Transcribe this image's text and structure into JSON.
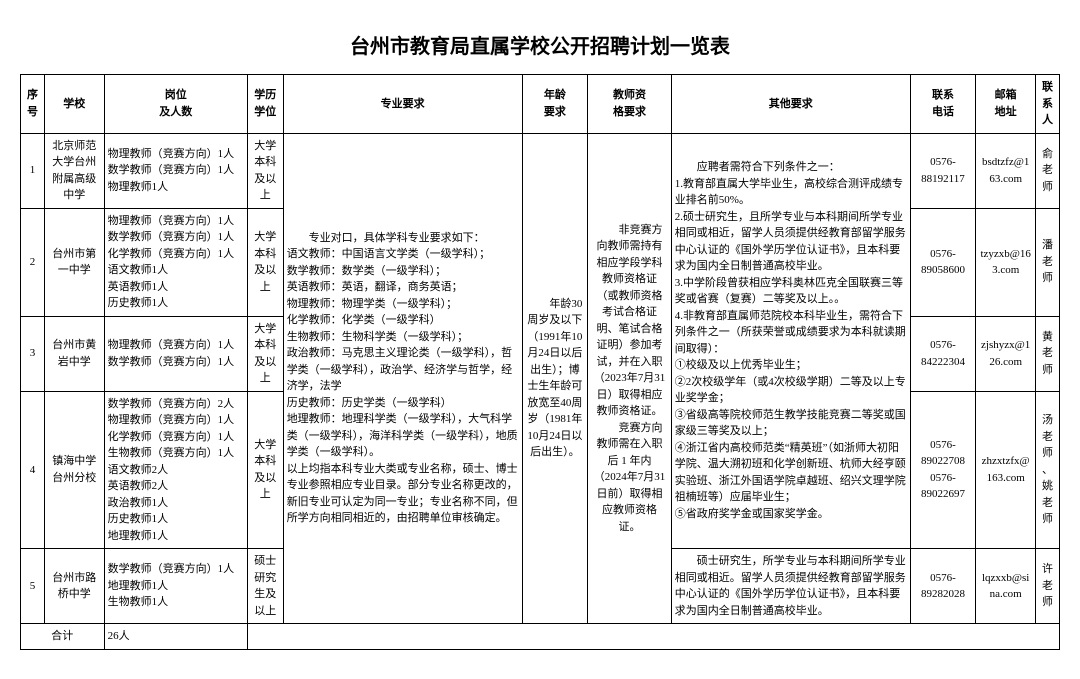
{
  "title": "台州市教育局直属学校公开招聘计划一览表",
  "headers": {
    "seq": "序号",
    "school": "学校",
    "post": "岗位\n及人数",
    "edu": "学历\n学位",
    "major": "专业要求",
    "age": "年龄\n要求",
    "qual": "教师资\n格要求",
    "other": "其他要求",
    "phone": "联系\n电话",
    "email": "邮箱\n地址",
    "contact": "联系人"
  },
  "rows": [
    {
      "seq": "1",
      "school": "北京师范大学台州附属高级中学",
      "post": "物理教师（竞赛方向）1人\n数学教师（竞赛方向）1人\n物理教师1人",
      "edu": "大学本科及以上",
      "phone": "0576-88192117",
      "email": "bsdtzfz@163.com",
      "contact": "俞老师"
    },
    {
      "seq": "2",
      "school": "台州市第一中学",
      "post": "物理教师（竞赛方向）1人\n数学教师（竞赛方向）1人\n化学教师（竞赛方向）1人\n语文教师1人\n英语教师1人\n历史教师1人",
      "edu": "大学本科及以上",
      "phone": "0576-89058600",
      "email": "tzyzxb@163.com",
      "contact": "潘老师"
    },
    {
      "seq": "3",
      "school": "台州市黄岩中学",
      "post": "物理教师（竞赛方向）1人\n数学教师（竞赛方向）1人",
      "edu": "大学本科及以上",
      "phone": "0576-84222304",
      "email": "zjshyzx@126.com",
      "contact": "黄老师"
    },
    {
      "seq": "4",
      "school": "镇海中学台州分校",
      "post": "数学教师（竞赛方向）2人\n物理教师（竞赛方向）1人\n化学教师（竞赛方向）1人\n生物教师（竞赛方向）1人\n语文教师2人\n英语教师2人\n政治教师1人\n历史教师1人\n地理教师1人",
      "edu": "大学本科及以上",
      "phone": "0576-89022708\n0576-89022697",
      "email": "zhzxtzfx@163.com",
      "contact": "汤老师、姚老师"
    },
    {
      "seq": "5",
      "school": "台州市路桥中学",
      "post": "数学教师（竞赛方向）1人\n地理教师1人\n生物教师1人",
      "edu": "硕士研究生及以上",
      "phone": "0576-89282028",
      "email": "lqzxxb@sina.com",
      "contact": "许老师"
    }
  ],
  "shared": {
    "major": "　　专业对口，具体学科专业要求如下：\n语文教师：中国语言文学类（一级学科）；\n数学教师：数学类（一级学科）；\n英语教师：英语，翻译，商务英语；\n物理教师：物理学类（一级学科）；\n化学教师：化学类（一级学科）\n生物教师：生物科学类（一级学科）；\n政治教师：马克思主义理论类（一级学科），哲学类（一级学科），政治学、经济学与哲学，经济学，法学\n历史教师：历史学类（一级学科）\n地理教师：地理科学类（一级学科），大气科学类（一级学科），海洋科学类（一级学科），地质学类（一级学科）。\n以上均指本科专业大类或专业名称，硕士、博士专业参照相应专业目录。部分专业名称更改的，新旧专业可认定为同一专业；专业名称不同，但所学方向相同相近的，由招聘单位审核确定。",
    "age": "　　年龄30周岁及以下（1991年10月24日以后出生）；博士生年龄可放宽至40周岁（1981年10月24日以后出生）。",
    "qual": "　　非竞赛方向教师需持有相应学段学科教师资格证（或教师资格考试合格证明、笔试合格证明）参加考试，并在入职（2023年7月31日）取得相应教师资格证。\n　　竞赛方向教师需在入职后 1 年内（2024年7月31日前）取得相应教师资格证。",
    "other1_4": "　　应聘者需符合下列条件之一：\n1.教育部直属大学毕业生，高校综合测评成绩专业排名前50%。\n2.硕士研究生，且所学专业与本科期间所学专业相同或相近，留学人员须提供经教育部留学服务中心认证的《国外学历学位认证书》，且本科要求为国内全日制普通高校毕业。\n3.中学阶段曾获相应学科奥林匹克全国联赛三等奖或省赛（复赛）二等奖及以上。。\n4.非教育部直属师范院校本科毕业生，需符合下列条件之一（所获荣誉或成绩要求为本科就读期间取得）：\n①校级及以上优秀毕业生；\n②2次校级学年（或4次校级学期）二等及以上专业奖学金；\n③省级高等院校师范生教学技能竞赛二等奖或国家级三等奖及以上；\n④浙江省内高校师范类“精英班”（如浙师大初阳学院、温大溯初班和化学创新班、杭师大经亨颐实验班、浙江外国语学院卓越班、绍兴文理学院祖楠班等）应届毕业生；\n⑤省政府奖学金或国家奖学金。",
    "other5": "　　硕士研究生，所学专业与本科期间所学专业相同或相近。留学人员须提供经教育部留学服务中心认证的《国外学历学位认证书》，且本科要求为国内全日制普通高校毕业。"
  },
  "total": {
    "label": "合计",
    "value": "26人"
  }
}
